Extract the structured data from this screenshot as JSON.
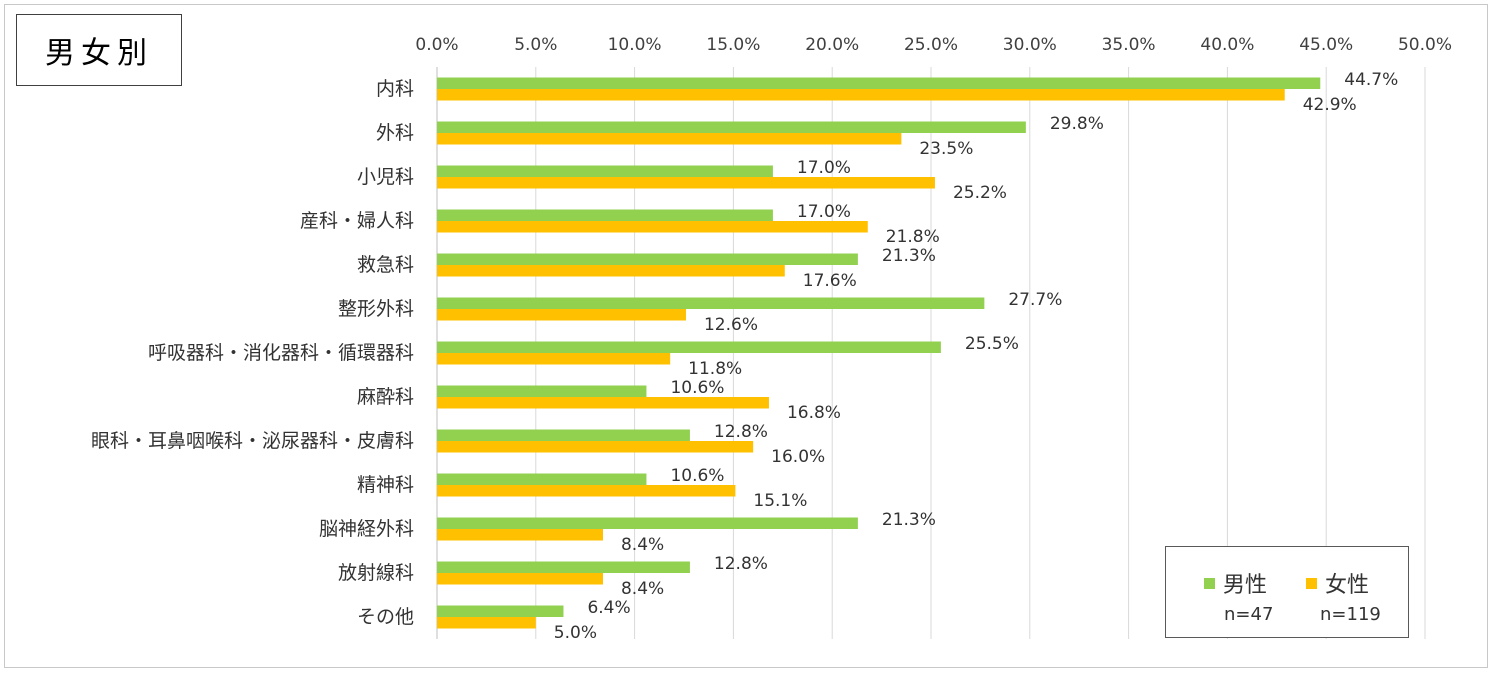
{
  "title": "男女別",
  "chart_data": {
    "type": "bar",
    "orientation": "horizontal",
    "categories": [
      "内科",
      "外科",
      "小児科",
      "産科・婦人科",
      "救急科",
      "整形外科",
      "呼吸器科・消化器科・循環器科",
      "麻酔科",
      "眼科・耳鼻咽喉科・泌尿器科・皮膚科",
      "精神科",
      "脳神経外科",
      "放射線科",
      "その他"
    ],
    "series": [
      {
        "name": "男性",
        "values": [
          44.7,
          29.8,
          17.0,
          17.0,
          21.3,
          27.7,
          25.5,
          10.6,
          12.8,
          10.6,
          21.3,
          12.8,
          6.4
        ],
        "color": "#92d050"
      },
      {
        "name": "女性",
        "values": [
          42.9,
          23.5,
          25.2,
          21.8,
          17.6,
          12.6,
          11.8,
          16.8,
          16.0,
          15.1,
          8.4,
          8.4,
          5.0
        ],
        "color": "#ffc000"
      }
    ],
    "xlim": [
      0,
      50
    ],
    "xticks": [
      "0.0%",
      "5.0%",
      "10.0%",
      "15.0%",
      "20.0%",
      "25.0%",
      "30.0%",
      "35.0%",
      "40.0%",
      "45.0%",
      "50.0%"
    ],
    "grid": true,
    "legend_position": "bottom-right"
  },
  "legend": {
    "items": [
      {
        "label": "男性",
        "n": "n=47",
        "color": "#92d050"
      },
      {
        "label": "女性",
        "n": "n=119",
        "color": "#ffc000"
      }
    ]
  }
}
